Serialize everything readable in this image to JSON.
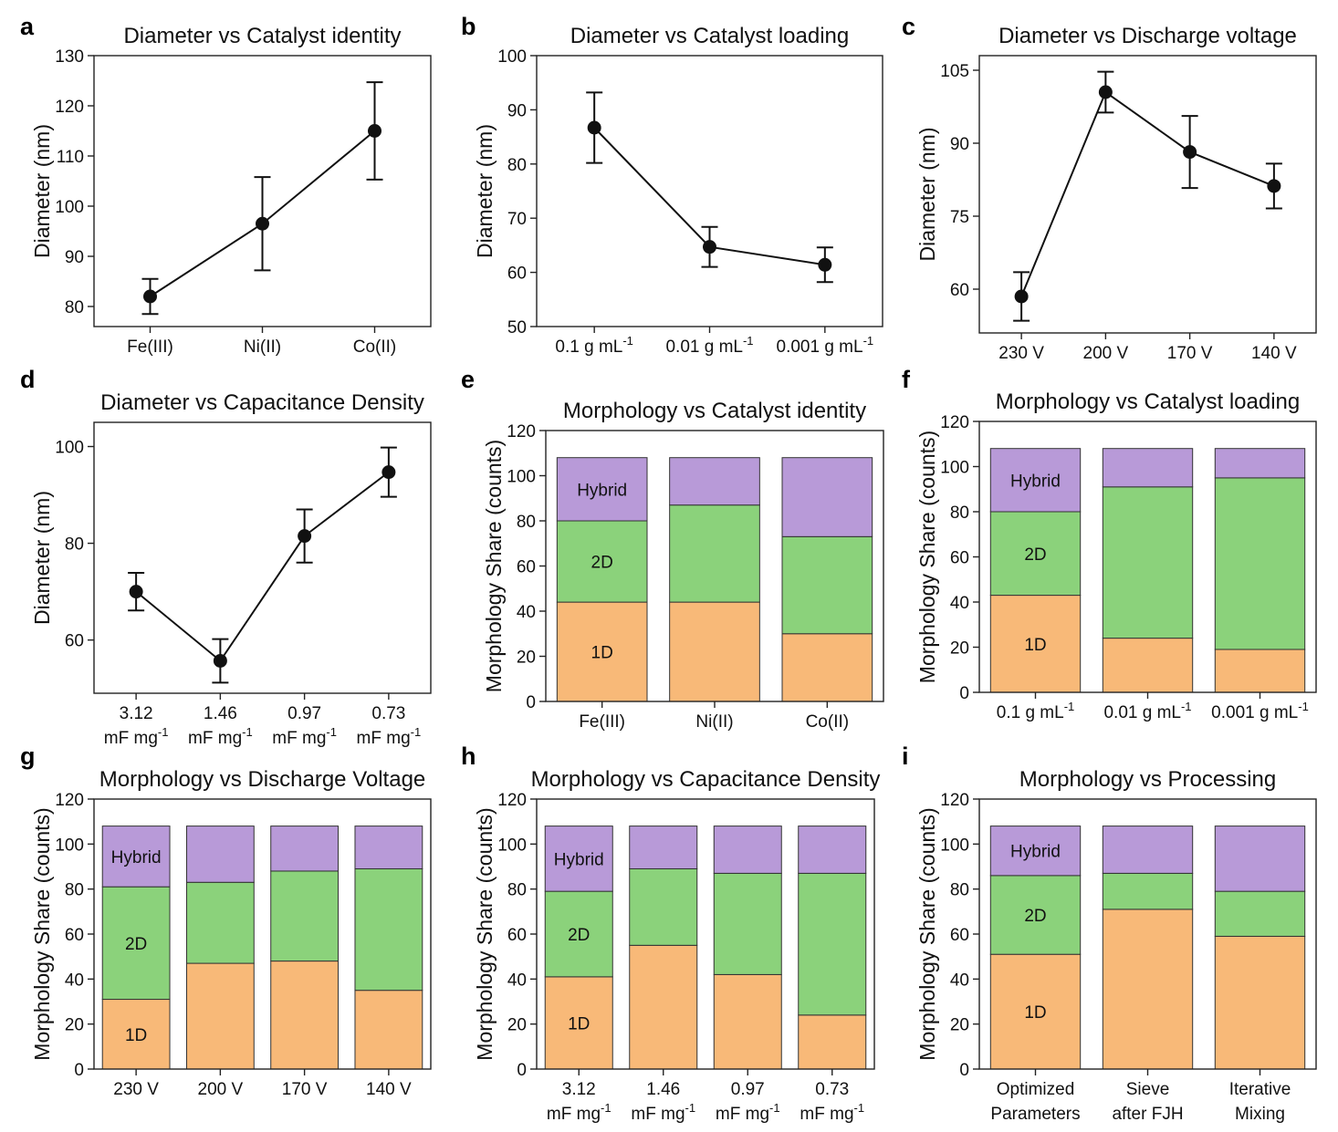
{
  "figure": {
    "colors": {
      "1D": "#f8b978",
      "2D": "#8bd27b",
      "Hybrid": "#b89ad8",
      "line": "#111111"
    }
  },
  "chart_data": [
    {
      "id": "a",
      "letter": "a",
      "type": "line",
      "title": "Diameter vs Catalyst identity",
      "ylabel": "Diameter (nm)",
      "xlabel": "",
      "categories": [
        [
          "Fe(III)"
        ],
        [
          "Ni(II)"
        ],
        [
          "Co(II)"
        ]
      ],
      "values": [
        82,
        96.5,
        115
      ],
      "errors": [
        3.5,
        9.3,
        9.7
      ],
      "ylim": [
        76,
        130
      ],
      "yticks": [
        80,
        90,
        100,
        110,
        120,
        130
      ]
    },
    {
      "id": "b",
      "letter": "b",
      "type": "line",
      "title": "Diameter vs Catalyst loading",
      "ylabel": "Diameter (nm)",
      "xlabel": "",
      "categories": [
        [
          "0.1 g mL⁻¹"
        ],
        [
          "0.01 g mL⁻¹"
        ],
        [
          "0.001 g mL⁻¹"
        ]
      ],
      "values": [
        86.7,
        64.7,
        61.4
      ],
      "errors": [
        6.5,
        3.7,
        3.2
      ],
      "ylim": [
        50,
        100
      ],
      "yticks": [
        50,
        60,
        70,
        80,
        90,
        100
      ]
    },
    {
      "id": "c",
      "letter": "c",
      "type": "line",
      "title": "Diameter vs Discharge voltage",
      "ylabel": "Diameter (nm)",
      "xlabel": "",
      "categories": [
        [
          "230 V"
        ],
        [
          "200 V"
        ],
        [
          "170 V"
        ],
        [
          "140 V"
        ]
      ],
      "values": [
        58.5,
        100.5,
        88.2,
        81.2
      ],
      "errors": [
        5.0,
        4.2,
        7.4,
        4.6
      ],
      "ylim": [
        51,
        108
      ],
      "yticks": [
        60,
        75,
        90,
        105
      ]
    },
    {
      "id": "d",
      "letter": "d",
      "type": "line",
      "title": "Diameter vs Capacitance Density",
      "ylabel": "Diameter (nm)",
      "xlabel": "",
      "categories": [
        [
          "3.12",
          "mF mg⁻¹"
        ],
        [
          "1.46",
          "mF mg⁻¹"
        ],
        [
          "0.97",
          "mF mg⁻¹"
        ],
        [
          "0.73",
          "mF mg⁻¹"
        ]
      ],
      "values": [
        70,
        55.7,
        81.5,
        94.7
      ],
      "errors": [
        3.9,
        4.5,
        5.5,
        5.1
      ],
      "ylim": [
        49,
        105
      ],
      "yticks": [
        60,
        80,
        100
      ]
    },
    {
      "id": "e",
      "letter": "e",
      "type": "bar",
      "title": "Morphology vs Catalyst identity",
      "ylabel": "Morphology Share (counts)",
      "xlabel": "",
      "categories": [
        [
          "Fe(III)"
        ],
        [
          "Ni(II)"
        ],
        [
          "Co(II)"
        ]
      ],
      "series": [
        {
          "name": "1D",
          "values": [
            44,
            44,
            30
          ]
        },
        {
          "name": "2D",
          "values": [
            36,
            43,
            43
          ]
        },
        {
          "name": "Hybrid",
          "values": [
            28,
            21,
            35
          ]
        }
      ],
      "ylim": [
        0,
        120
      ],
      "yticks": [
        0,
        20,
        40,
        60,
        80,
        100,
        120
      ]
    },
    {
      "id": "f",
      "letter": "f",
      "type": "bar",
      "title": "Morphology vs Catalyst loading",
      "ylabel": "Morphology Share (counts)",
      "xlabel": "",
      "categories": [
        [
          "0.1 g mL⁻¹"
        ],
        [
          "0.01 g mL⁻¹"
        ],
        [
          "0.001 g mL⁻¹"
        ]
      ],
      "series": [
        {
          "name": "1D",
          "values": [
            43,
            24,
            19
          ]
        },
        {
          "name": "2D",
          "values": [
            37,
            67,
            76
          ]
        },
        {
          "name": "Hybrid",
          "values": [
            28,
            17,
            13
          ]
        }
      ],
      "ylim": [
        0,
        120
      ],
      "yticks": [
        0,
        20,
        40,
        60,
        80,
        100,
        120
      ]
    },
    {
      "id": "g",
      "letter": "g",
      "type": "bar",
      "title": "Morphology vs Discharge Voltage",
      "ylabel": "Morphology Share (counts)",
      "xlabel": "",
      "categories": [
        [
          "230 V"
        ],
        [
          "200 V"
        ],
        [
          "170 V"
        ],
        [
          "140 V"
        ]
      ],
      "series": [
        {
          "name": "1D",
          "values": [
            31,
            47,
            48,
            35
          ]
        },
        {
          "name": "2D",
          "values": [
            50,
            36,
            40,
            54
          ]
        },
        {
          "name": "Hybrid",
          "values": [
            27,
            25,
            20,
            19
          ]
        }
      ],
      "ylim": [
        0,
        120
      ],
      "yticks": [
        0,
        20,
        40,
        60,
        80,
        100,
        120
      ]
    },
    {
      "id": "h",
      "letter": "h",
      "type": "bar",
      "title": "Morphology vs Capacitance Density",
      "ylabel": "Morphology Share (counts)",
      "xlabel": "",
      "categories": [
        [
          "3.12",
          "mF mg⁻¹"
        ],
        [
          "1.46",
          "mF mg⁻¹"
        ],
        [
          "0.97",
          "mF mg⁻¹"
        ],
        [
          "0.73",
          "mF mg⁻¹"
        ]
      ],
      "series": [
        {
          "name": "1D",
          "values": [
            41,
            55,
            42,
            24
          ]
        },
        {
          "name": "2D",
          "values": [
            38,
            34,
            45,
            63
          ]
        },
        {
          "name": "Hybrid",
          "values": [
            29,
            19,
            21,
            21
          ]
        }
      ],
      "ylim": [
        0,
        120
      ],
      "yticks": [
        0,
        20,
        40,
        60,
        80,
        100,
        120
      ]
    },
    {
      "id": "i",
      "letter": "i",
      "type": "bar",
      "title": "Morphology vs Processing",
      "ylabel": "Morphology Share (counts)",
      "xlabel": "",
      "categories": [
        [
          "Optimized",
          "Parameters"
        ],
        [
          "Sieve",
          "after FJH"
        ],
        [
          "Iterative",
          "Mixing"
        ]
      ],
      "series": [
        {
          "name": "1D",
          "values": [
            51,
            71,
            59
          ]
        },
        {
          "name": "2D",
          "values": [
            35,
            16,
            20
          ]
        },
        {
          "name": "Hybrid",
          "values": [
            22,
            21,
            29
          ]
        }
      ],
      "ylim": [
        0,
        120
      ],
      "yticks": [
        0,
        20,
        40,
        60,
        80,
        100,
        120
      ]
    }
  ]
}
